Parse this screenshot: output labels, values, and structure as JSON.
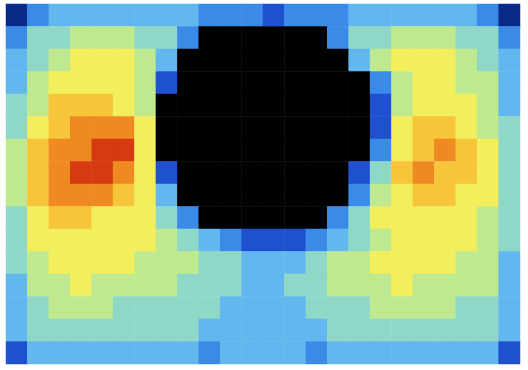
{
  "chart_data": {
    "type": "heatmap",
    "cells": [
      [
        1,
        3,
        4,
        4,
        4,
        4,
        4,
        4,
        4,
        3,
        3,
        3,
        2,
        3,
        3,
        3,
        4,
        4,
        4,
        4,
        4,
        4,
        3,
        1
      ],
      [
        3,
        5,
        5,
        6,
        6,
        6,
        5,
        5,
        3,
        0,
        0,
        0,
        0,
        0,
        0,
        3,
        5,
        5,
        6,
        6,
        6,
        5,
        5,
        3
      ],
      [
        4,
        5,
        6,
        7,
        7,
        7,
        6,
        4,
        0,
        0,
        0,
        0,
        0,
        0,
        0,
        0,
        4,
        6,
        7,
        7,
        7,
        6,
        5,
        4
      ],
      [
        4,
        6,
        7,
        7,
        7,
        7,
        6,
        2,
        0,
        0,
        0,
        0,
        0,
        0,
        0,
        0,
        0,
        3,
        6,
        7,
        7,
        6,
        6,
        4
      ],
      [
        5,
        6,
        8,
        8,
        8,
        7,
        6,
        0,
        0,
        0,
        0,
        0,
        0,
        0,
        0,
        0,
        0,
        2,
        6,
        7,
        7,
        7,
        6,
        4
      ],
      [
        5,
        7,
        8,
        9,
        9,
        9,
        7,
        0,
        0,
        0,
        0,
        0,
        0,
        0,
        0,
        0,
        0,
        2,
        7,
        8,
        8,
        7,
        6,
        5
      ],
      [
        6,
        8,
        9,
        9,
        10,
        10,
        7,
        0,
        0,
        0,
        0,
        0,
        0,
        0,
        0,
        0,
        0,
        3,
        7,
        8,
        9,
        8,
        7,
        5
      ],
      [
        6,
        8,
        9,
        10,
        10,
        9,
        7,
        2,
        0,
        0,
        0,
        0,
        0,
        0,
        0,
        0,
        2,
        5,
        8,
        9,
        8,
        8,
        7,
        5
      ],
      [
        6,
        8,
        9,
        9,
        9,
        8,
        7,
        4,
        0,
        0,
        0,
        0,
        0,
        0,
        0,
        0,
        3,
        6,
        7,
        8,
        8,
        7,
        7,
        5
      ],
      [
        5,
        7,
        8,
        8,
        7,
        7,
        7,
        5,
        3,
        0,
        0,
        0,
        0,
        0,
        0,
        3,
        5,
        7,
        7,
        7,
        7,
        7,
        6,
        5
      ],
      [
        5,
        7,
        7,
        7,
        7,
        7,
        7,
        6,
        5,
        4,
        3,
        2,
        2,
        2,
        3,
        4,
        5,
        6,
        7,
        7,
        7,
        7,
        6,
        5
      ],
      [
        5,
        6,
        7,
        7,
        7,
        7,
        6,
        6,
        6,
        5,
        5,
        4,
        4,
        4,
        5,
        6,
        6,
        7,
        7,
        7,
        7,
        6,
        6,
        4
      ],
      [
        4,
        6,
        6,
        7,
        6,
        6,
        6,
        6,
        5,
        5,
        5,
        4,
        4,
        5,
        5,
        6,
        6,
        6,
        7,
        6,
        6,
        6,
        6,
        4
      ],
      [
        4,
        5,
        6,
        6,
        6,
        5,
        5,
        5,
        5,
        5,
        4,
        4,
        4,
        4,
        5,
        5,
        5,
        6,
        6,
        6,
        6,
        5,
        5,
        4
      ],
      [
        4,
        5,
        5,
        5,
        5,
        5,
        5,
        5,
        5,
        4,
        4,
        4,
        4,
        4,
        4,
        5,
        5,
        5,
        5,
        5,
        5,
        5,
        5,
        4
      ],
      [
        2,
        4,
        4,
        4,
        4,
        4,
        4,
        4,
        4,
        3,
        4,
        4,
        4,
        4,
        3,
        4,
        4,
        4,
        4,
        4,
        4,
        4,
        4,
        2
      ]
    ],
    "color_range": [
      0,
      10
    ],
    "tick_labels": false
  }
}
